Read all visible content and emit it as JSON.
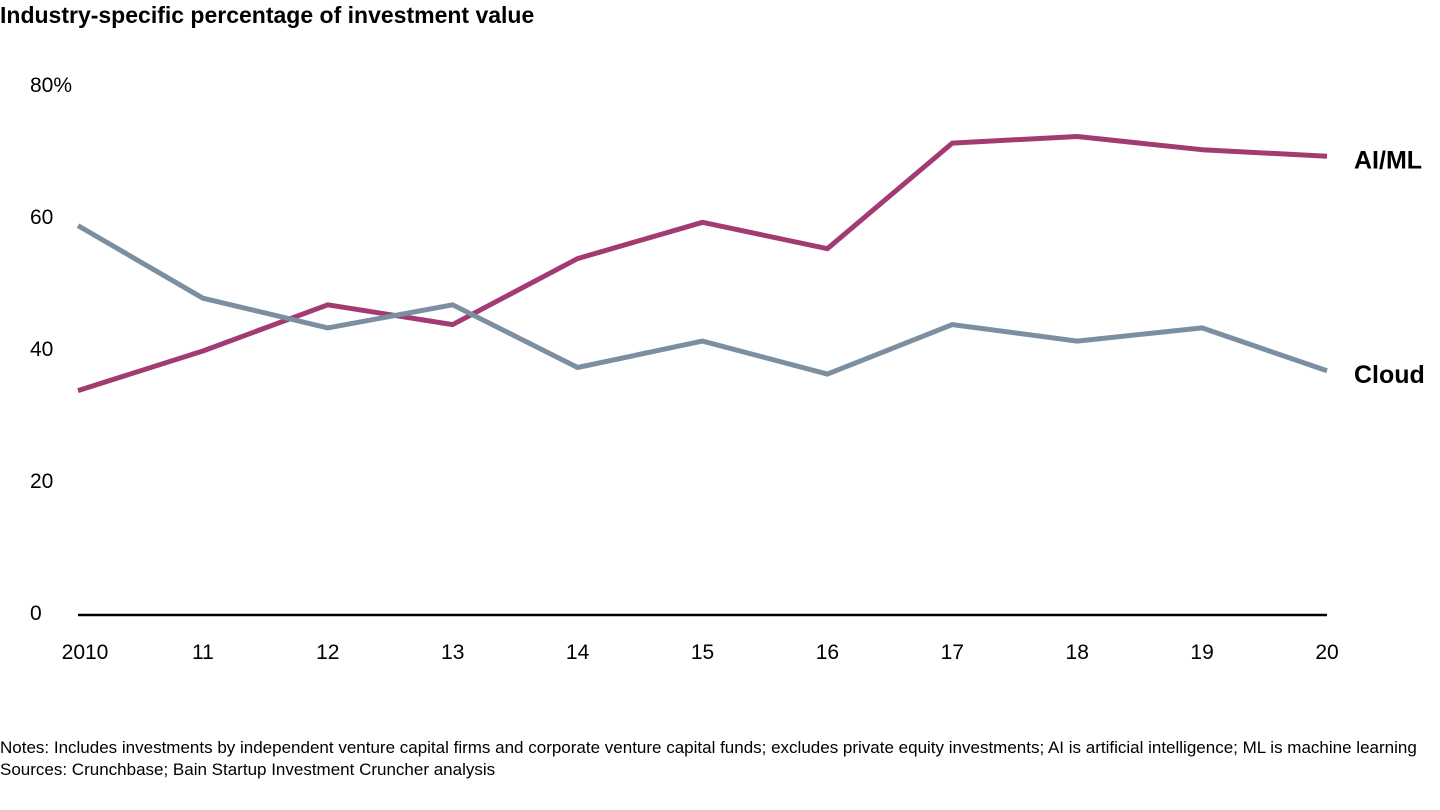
{
  "chart_data": {
    "type": "line",
    "title": "Industry-specific percentage of investment value",
    "categories": [
      "2010",
      "11",
      "12",
      "13",
      "14",
      "15",
      "16",
      "17",
      "18",
      "19",
      "20"
    ],
    "y_ticks": [
      "0",
      "20",
      "40",
      "60",
      "80%"
    ],
    "ylim": [
      0,
      80
    ],
    "grid": false,
    "series": [
      {
        "name": "AI/ML",
        "color": "#a23b72",
        "values": [
          34,
          40,
          47,
          44,
          54,
          59.5,
          55.5,
          71.5,
          72.5,
          70.5,
          69.5
        ]
      },
      {
        "name": "Cloud",
        "color": "#7b8fa1",
        "values": [
          59,
          48,
          43.5,
          47,
          37.5,
          41.5,
          36.5,
          44,
          41.5,
          43.5,
          37
        ]
      }
    ]
  },
  "notes": "Notes: Includes investments by independent venture capital firms and corporate venture capital funds; excludes private equity investments; AI is artificial intelligence; ML is machine learning",
  "sources": "Sources: Crunchbase; Bain Startup Investment Cruncher analysis"
}
